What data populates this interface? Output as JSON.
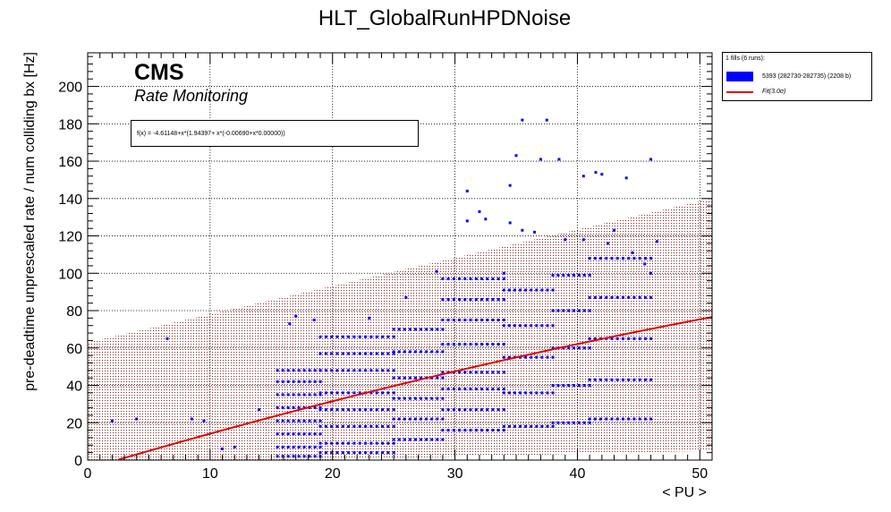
{
  "chart_data": {
    "type": "scatter",
    "title": "HLT_GlobalRunHPDNoise",
    "xlabel": "< PU >",
    "ylabel": "pre-deadtime unprescaled rate / num colliding bx [Hz]",
    "xlim": [
      0,
      51
    ],
    "ylim": [
      0,
      218
    ],
    "xticks": [
      0,
      10,
      20,
      30,
      40,
      50
    ],
    "yticks": [
      0,
      20,
      40,
      60,
      80,
      100,
      120,
      140,
      160,
      180,
      200
    ],
    "grid": true,
    "cms_label": "CMS",
    "cms_sublabel": "Rate Monitoring",
    "legend_position": "outside-top-right",
    "legend_header": "1 fills (6 runs):",
    "series": [
      {
        "name": "5393 (282730-282735) (2208 b)",
        "color": "#0000ff",
        "points_sparse": [
          [
            2,
            21
          ],
          [
            4,
            22
          ],
          [
            6.5,
            65
          ],
          [
            8.5,
            22
          ],
          [
            9.5,
            21
          ],
          [
            11,
            6
          ],
          [
            12,
            7
          ],
          [
            14,
            27
          ],
          [
            16.5,
            73
          ],
          [
            17,
            77
          ],
          [
            18.5,
            75
          ],
          [
            23,
            76
          ],
          [
            26,
            87
          ],
          [
            28.5,
            101
          ],
          [
            31,
            144
          ],
          [
            32,
            133
          ],
          [
            34,
            100
          ],
          [
            35,
            163
          ],
          [
            35.5,
            182
          ],
          [
            37.5,
            182
          ],
          [
            37,
            161
          ],
          [
            38.5,
            161
          ],
          [
            40.5,
            152
          ],
          [
            41.5,
            154
          ],
          [
            42,
            153
          ],
          [
            43,
            123
          ],
          [
            44,
            151
          ],
          [
            46,
            161
          ],
          [
            46.5,
            117
          ],
          [
            34.5,
            147
          ],
          [
            31,
            128
          ],
          [
            32.5,
            129
          ],
          [
            34.5,
            127
          ],
          [
            35.5,
            123
          ],
          [
            36.5,
            122
          ],
          [
            39,
            118
          ],
          [
            40.5,
            118
          ],
          [
            42.5,
            116
          ],
          [
            44.5,
            111
          ],
          [
            45.5,
            105
          ],
          [
            46,
            100
          ]
        ],
        "bands": [
          {
            "x": [
              15.5,
              19
            ],
            "y": 2
          },
          {
            "x": [
              15.5,
              19
            ],
            "y": 7
          },
          {
            "x": [
              15.5,
              19
            ],
            "y": 14
          },
          {
            "x": [
              15.5,
              19
            ],
            "y": 21
          },
          {
            "x": [
              15.5,
              19
            ],
            "y": 28
          },
          {
            "x": [
              15.5,
              19
            ],
            "y": 35
          },
          {
            "x": [
              15.5,
              19
            ],
            "y": 42
          },
          {
            "x": [
              15.5,
              19
            ],
            "y": 48
          },
          {
            "x": [
              19,
              25
            ],
            "y": 4
          },
          {
            "x": [
              19,
              25
            ],
            "y": 9
          },
          {
            "x": [
              19,
              25
            ],
            "y": 18
          },
          {
            "x": [
              19,
              25
            ],
            "y": 27
          },
          {
            "x": [
              19,
              25
            ],
            "y": 36
          },
          {
            "x": [
              19,
              25
            ],
            "y": 48
          },
          {
            "x": [
              19,
              25
            ],
            "y": 57
          },
          {
            "x": [
              19,
              25
            ],
            "y": 66
          },
          {
            "x": [
              25,
              29
            ],
            "y": 11
          },
          {
            "x": [
              25,
              29
            ],
            "y": 22
          },
          {
            "x": [
              25,
              29
            ],
            "y": 33
          },
          {
            "x": [
              25,
              29
            ],
            "y": 44
          },
          {
            "x": [
              25,
              29
            ],
            "y": 58
          },
          {
            "x": [
              25,
              29
            ],
            "y": 70
          },
          {
            "x": [
              29,
              34
            ],
            "y": 16
          },
          {
            "x": [
              29,
              34
            ],
            "y": 27
          },
          {
            "x": [
              29,
              34
            ],
            "y": 38
          },
          {
            "x": [
              29,
              34
            ],
            "y": 47
          },
          {
            "x": [
              29,
              34
            ],
            "y": 62
          },
          {
            "x": [
              29,
              34
            ],
            "y": 75
          },
          {
            "x": [
              29,
              34
            ],
            "y": 86
          },
          {
            "x": [
              29,
              34
            ],
            "y": 97
          },
          {
            "x": [
              34,
              38
            ],
            "y": 18
          },
          {
            "x": [
              34,
              38
            ],
            "y": 36
          },
          {
            "x": [
              34,
              38
            ],
            "y": 55
          },
          {
            "x": [
              34,
              38
            ],
            "y": 72
          },
          {
            "x": [
              34,
              38
            ],
            "y": 91
          },
          {
            "x": [
              38,
              41
            ],
            "y": 20
          },
          {
            "x": [
              38,
              41
            ],
            "y": 40
          },
          {
            "x": [
              38,
              41
            ],
            "y": 60
          },
          {
            "x": [
              38,
              41
            ],
            "y": 80
          },
          {
            "x": [
              38,
              41
            ],
            "y": 99
          },
          {
            "x": [
              41,
              46
            ],
            "y": 22
          },
          {
            "x": [
              41,
              46
            ],
            "y": 43
          },
          {
            "x": [
              41,
              46
            ],
            "y": 65
          },
          {
            "x": [
              41,
              46
            ],
            "y": 87
          },
          {
            "x": [
              41,
              46
            ],
            "y": 108
          }
        ]
      }
    ],
    "fit": {
      "name": "Fit(3.0σ)",
      "color": "#e00000",
      "formula_text": "f(x) = -4.61148+x*(1.94397+ x*(-0.00690+x*0.00000))",
      "c0": -4.61148,
      "c1": 1.94397,
      "c2": -0.0069,
      "c3": 0.0,
      "x_range": [
        2,
        51
      ],
      "band_lower": [
        [
          0,
          0
        ],
        [
          18,
          0
        ],
        [
          51,
          5
        ]
      ],
      "band_upper": [
        [
          0,
          63
        ],
        [
          51,
          140
        ]
      ]
    }
  }
}
